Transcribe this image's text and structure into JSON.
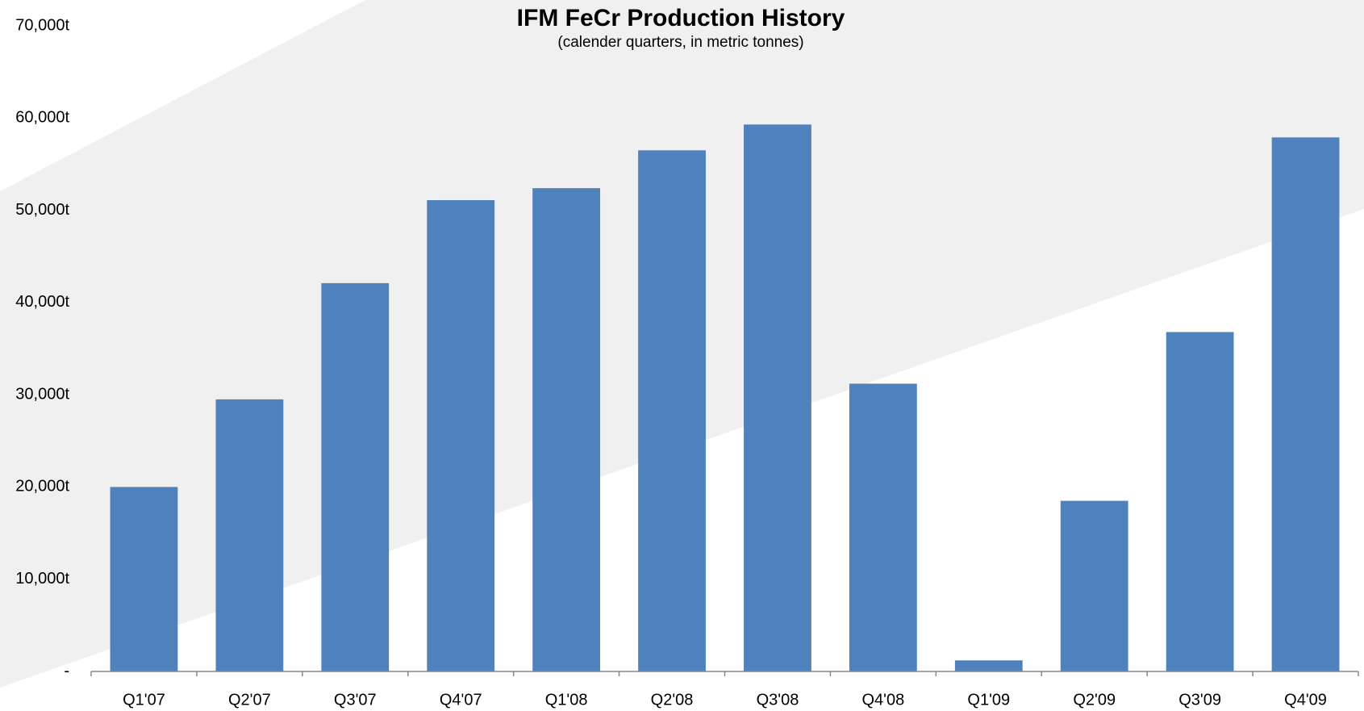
{
  "chart_data": {
    "type": "bar",
    "title": "IFM FeCr Production History",
    "subtitle": "(calender quarters, in metric tonnes)",
    "categories": [
      "Q1'07",
      "Q2'07",
      "Q3'07",
      "Q4'07",
      "Q1'08",
      "Q2'08",
      "Q3'08",
      "Q4'08",
      "Q1'09",
      "Q2'09",
      "Q3'09",
      "Q4'09"
    ],
    "values": [
      20000,
      29500,
      42100,
      51100,
      52400,
      56500,
      59300,
      31200,
      1200,
      18500,
      36800,
      57900
    ],
    "color": "#4f81bd",
    "ylim": [
      0,
      70000
    ],
    "yticks": [
      {
        "value": 0,
        "label": "-"
      },
      {
        "value": 10000,
        "label": "10,000t"
      },
      {
        "value": 20000,
        "label": "20,000t"
      },
      {
        "value": 30000,
        "label": "30,000t"
      },
      {
        "value": 40000,
        "label": "40,000t"
      },
      {
        "value": 50000,
        "label": "50,000t"
      },
      {
        "value": 60000,
        "label": "60,000t"
      },
      {
        "value": 70000,
        "label": "70,000t"
      }
    ],
    "grid": false
  }
}
